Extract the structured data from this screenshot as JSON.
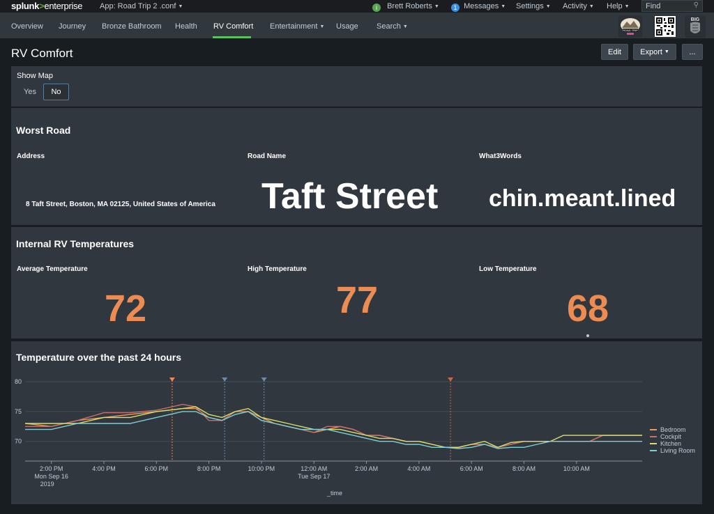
{
  "topbar": {
    "logo_main": "splunk",
    "logo_gt": ">",
    "logo_suffix": "enterprise",
    "app_label": "App: Road Trip 2 .conf",
    "user": "Brett Roberts",
    "messages_count": "1",
    "messages": "Messages",
    "settings": "Settings",
    "activity": "Activity",
    "help": "Help",
    "find_placeholder": "Find"
  },
  "nav": {
    "items": [
      {
        "label": "Overview"
      },
      {
        "label": "Journey"
      },
      {
        "label": "Bronze Bathroom"
      },
      {
        "label": "Health"
      },
      {
        "label": "RV Comfort"
      },
      {
        "label": "Entertainment"
      },
      {
        "label": "Usage"
      },
      {
        "label": "Search"
      }
    ],
    "badge_road_trip": "ROAD TRIP",
    "badge_big": "BIG"
  },
  "page": {
    "title": "RV Comfort",
    "edit": "Edit",
    "export": "Export",
    "more": "..."
  },
  "show_map": {
    "label": "Show Map",
    "yes": "Yes",
    "no": "No",
    "selected": "No"
  },
  "worst_road": {
    "title": "Worst Road",
    "address_label": "Address",
    "address_value": "8 Taft Street, Boston, MA 02125, United States of America",
    "road_label": "Road Name",
    "road_value": "Taft Street",
    "w3w_label": "What3Words",
    "w3w_value": "chin.meant.lined"
  },
  "temps": {
    "title": "Internal RV Temperatures",
    "avg_label": "Average Temperature",
    "avg_value": "72",
    "high_label": "High Temperature",
    "high_value": "77",
    "low_label": "Low Temperature",
    "low_value": "68",
    "accent": "#ec8c53"
  },
  "chart_panel": {
    "title": "Temperature over the past 24 hours"
  },
  "chart_data": {
    "type": "line",
    "title": "Temperature over the past 24 hours",
    "xlabel": "_time",
    "ylabel": "",
    "ylim": [
      66,
      80
    ],
    "yticks": [
      "80",
      "75",
      "70"
    ],
    "xticks": [
      {
        "t": 14,
        "label": "2:00 PM",
        "sub": "Mon Sep 16",
        "sub2": "2019"
      },
      {
        "t": 16,
        "label": "4:00 PM"
      },
      {
        "t": 18,
        "label": "6:00 PM"
      },
      {
        "t": 20,
        "label": "8:00 PM"
      },
      {
        "t": 22,
        "label": "10:00 PM"
      },
      {
        "t": 24,
        "label": "12:00 AM",
        "sub": "Tue Sep 17"
      },
      {
        "t": 26,
        "label": "2:00 AM"
      },
      {
        "t": 28,
        "label": "4:00 AM"
      },
      {
        "t": 30,
        "label": "6:00 AM"
      },
      {
        "t": 32,
        "label": "8:00 AM"
      },
      {
        "t": 34,
        "label": "10:00 AM"
      }
    ],
    "xrange": [
      13.0,
      36.5
    ],
    "x": [
      13.0,
      14.0,
      15.0,
      16.0,
      17.0,
      18.0,
      19.0,
      19.5,
      20.0,
      20.5,
      21.0,
      21.5,
      22.0,
      22.5,
      23.0,
      23.5,
      24.0,
      24.5,
      25.0,
      25.5,
      26.0,
      26.5,
      27.0,
      27.5,
      28.0,
      28.5,
      29.0,
      29.5,
      30.0,
      30.5,
      31.0,
      31.5,
      32.0,
      32.5,
      33.0,
      33.5,
      34.0,
      34.5,
      35.0,
      35.5,
      36.5
    ],
    "series": [
      {
        "name": "Bedroom",
        "color": "#ec9c5c",
        "values": [
          73,
          72.5,
          73.5,
          74,
          74.5,
          75,
          75.5,
          75.5,
          74,
          73.5,
          75,
          75,
          74,
          73,
          72.5,
          72,
          71.5,
          72,
          72.5,
          72,
          71,
          71,
          70.5,
          70,
          70,
          69.5,
          69,
          69,
          69.5,
          69.5,
          69,
          69.5,
          70,
          70,
          70,
          70,
          70,
          70,
          71,
          71,
          71
        ]
      },
      {
        "name": "Cockpit",
        "color": "#c87070",
        "values": [
          72.5,
          72.5,
          73.5,
          74.8,
          74.8,
          75.2,
          76.2,
          75.8,
          73.5,
          73.5,
          75,
          75,
          73.5,
          73,
          72.5,
          72,
          71.5,
          72.5,
          72.5,
          72,
          71,
          71,
          70.5,
          70,
          70,
          69.5,
          69,
          69,
          69.5,
          69.5,
          69,
          69.5,
          70,
          70,
          70,
          70,
          70,
          70,
          71,
          71,
          71
        ]
      },
      {
        "name": "Kitchen",
        "color": "#d6e06a",
        "values": [
          73,
          73,
          73,
          74,
          74,
          75,
          75.5,
          75.8,
          74.5,
          74,
          75,
          75.5,
          74,
          73.5,
          73,
          72.5,
          72,
          72,
          72,
          71.5,
          71,
          70.5,
          70.5,
          70,
          70,
          69.5,
          69,
          69,
          69.5,
          70,
          69,
          69.8,
          70,
          70,
          70,
          71,
          71,
          71,
          71,
          71,
          71
        ]
      },
      {
        "name": "Living Room",
        "color": "#7ecfd6",
        "values": [
          72,
          72,
          73,
          73,
          73,
          74,
          75,
          75,
          74,
          73.5,
          74.5,
          75,
          73.5,
          73,
          72.5,
          72,
          72,
          72,
          71.5,
          71,
          70.5,
          70,
          70,
          69.5,
          69.5,
          69,
          69,
          68.8,
          69,
          69.5,
          68.8,
          69,
          69,
          69.5,
          70,
          70,
          70,
          70,
          70,
          70,
          70
        ]
      }
    ],
    "annotations": [
      {
        "t": 18.6,
        "color": "#ec8c53"
      },
      {
        "t": 20.6,
        "color": "#6f8aa7"
      },
      {
        "t": 22.1,
        "color": "#6f8aa7"
      },
      {
        "t": 29.2,
        "color": "#c46a4a"
      }
    ],
    "legend_placement": "right",
    "grid": true
  }
}
